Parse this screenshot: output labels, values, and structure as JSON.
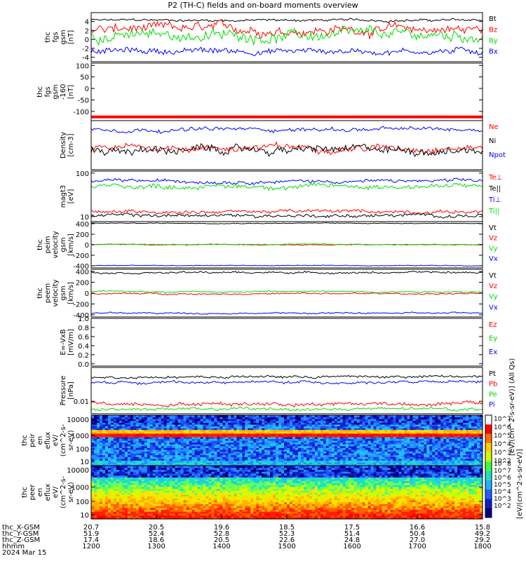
{
  "title": "P2 (TH-C) fields and on-board moments overview",
  "colors": {
    "black": "#000000",
    "red": "#ff0000",
    "green": "#00dd00",
    "blue": "#0000ff"
  },
  "chart_data": [
    {
      "type": "line",
      "panel_id": "fgs",
      "ylabel": [
        "thc",
        "fgs",
        "gsm",
        "[nT]"
      ],
      "yticks": [
        "4",
        "2",
        "0",
        "-2",
        "-4"
      ],
      "ylim": [
        -5,
        6
      ],
      "tick_values": [
        4,
        2,
        0,
        -2,
        -4
      ],
      "series": [
        {
          "name": "Bt",
          "color": "#000000",
          "level": 4.3,
          "noise": 0.4
        },
        {
          "name": "Bz",
          "color": "#ff0000",
          "level": 2.2,
          "noise": 1.6
        },
        {
          "name": "By",
          "color": "#00dd00",
          "level": 0.8,
          "noise": 1.8
        },
        {
          "name": "Bx",
          "color": "#0000ff",
          "level": -2.6,
          "noise": 1.0
        }
      ]
    },
    {
      "type": "line",
      "panel_id": "fgs_m160",
      "ylabel": [
        "thc",
        "fgs",
        "gsm",
        "-160",
        "[nT]"
      ],
      "yticks": [
        "100",
        "50",
        "0",
        "-50",
        "-100"
      ],
      "ylim": [
        -140,
        110
      ],
      "tick_values": [
        100,
        50,
        0,
        -50,
        -100
      ],
      "series": [
        {
          "name": "",
          "color": "#00dd00",
          "level": -104,
          "noise": 2
        },
        {
          "name": "",
          "color": "#ff0000",
          "level": -124,
          "noise": 0
        }
      ]
    },
    {
      "type": "line",
      "panel_id": "density",
      "ylabel": [
        "Density",
        "[cm-3]"
      ],
      "yticks": [],
      "ylim": [
        0,
        1
      ],
      "series": [
        {
          "name": "Ne",
          "color": "#ff0000",
          "level": 0.45,
          "noise": 0.1
        },
        {
          "name": "Ni",
          "color": "#000000",
          "level": 0.4,
          "noise": 0.12
        },
        {
          "name": "Npot",
          "color": "#0000ff",
          "level": 0.82,
          "noise": 0.06
        }
      ]
    },
    {
      "type": "line",
      "panel_id": "temp",
      "ylabel": [
        "magt3",
        "[eV]"
      ],
      "yticks": [
        "100",
        "10"
      ],
      "ylim": [
        0,
        1
      ],
      "tick_values": [
        0.96,
        0.1
      ],
      "series": [
        {
          "name": "Te⊥",
          "color": "#ff0000",
          "level": 0.2,
          "noise": 0.05
        },
        {
          "name": "Te||",
          "color": "#000000",
          "level": 0.12,
          "noise": 0.05
        },
        {
          "name": "Ti⊥",
          "color": "#0000ff",
          "level": 0.8,
          "noise": 0.05
        },
        {
          "name": "Ti||",
          "color": "#00dd00",
          "level": 0.7,
          "noise": 0.07
        }
      ]
    },
    {
      "type": "line",
      "panel_id": "peim_vel",
      "ylabel": [
        "thc",
        "peim",
        "velocity",
        "gsm",
        "[km/s]"
      ],
      "yticks": [
        "400",
        "200",
        "0",
        "-200",
        "-400"
      ],
      "ylim": [
        -440,
        440
      ],
      "tick_values": [
        400,
        200,
        0,
        -200,
        -400
      ],
      "series": [
        {
          "name": "Vt",
          "color": "#000000",
          "level": 410,
          "noise": 10
        },
        {
          "name": "Vz",
          "color": "#ff0000",
          "level": 0,
          "noise": 12
        },
        {
          "name": "Vy",
          "color": "#00dd00",
          "level": 5,
          "noise": 12
        },
        {
          "name": "Vx",
          "color": "#0000ff",
          "level": -395,
          "noise": 10
        }
      ]
    },
    {
      "type": "line",
      "panel_id": "peem_vel",
      "ylabel": [
        "thc",
        "peem",
        "velocity",
        "gsm",
        "[km/s]"
      ],
      "yticks": [
        "400",
        "200",
        "0",
        "-200",
        "-400"
      ],
      "ylim": [
        -440,
        440
      ],
      "tick_values": [
        400,
        200,
        0,
        -200,
        -400
      ],
      "series": [
        {
          "name": "Vt",
          "color": "#000000",
          "level": 380,
          "noise": 25
        },
        {
          "name": "Vz",
          "color": "#ff0000",
          "level": -10,
          "noise": 20
        },
        {
          "name": "Vy",
          "color": "#00dd00",
          "level": 30,
          "noise": 20
        },
        {
          "name": "Vx",
          "color": "#0000ff",
          "level": -370,
          "noise": 20
        }
      ]
    },
    {
      "type": "line",
      "panel_id": "efield",
      "ylabel": [
        "E=-VxB",
        "[mV/m]"
      ],
      "yticks": [
        "1.0",
        "0.8",
        "0.6",
        "0.4",
        "0.2",
        "0.0"
      ],
      "ylim": [
        -0.05,
        1.0
      ],
      "tick_values": [
        1.0,
        0.8,
        0.6,
        0.4,
        0.2,
        0.0
      ],
      "series": [
        {
          "name": "Ez",
          "color": "#ff0000"
        },
        {
          "name": "Ey",
          "color": "#00dd00"
        },
        {
          "name": "Ex",
          "color": "#0000ff"
        }
      ]
    },
    {
      "type": "line",
      "panel_id": "pressure",
      "ylabel": [
        "Pressure",
        "[nPa]"
      ],
      "yticks": [
        "0.01"
      ],
      "ylim": [
        0,
        1
      ],
      "tick_values": [
        0.27
      ],
      "series": [
        {
          "name": "Pt",
          "color": "#000000",
          "level": 0.8,
          "noise": 0.04
        },
        {
          "name": "Pb",
          "color": "#ff0000",
          "level": 0.22,
          "noise": 0.06
        },
        {
          "name": "Pe",
          "color": "#00dd00",
          "level": 0.1,
          "noise": 0.05
        },
        {
          "name": "Pi",
          "color": "#0000ff",
          "level": 0.68,
          "noise": 0.04
        }
      ]
    },
    {
      "type": "heatmap",
      "panel_id": "peir_spec",
      "ylabel": [
        "thc",
        "peir",
        "en",
        "eflux",
        "eV/",
        "(cm^2-s-",
        "sr-eV)"
      ],
      "yticks": [
        "10000",
        "1000",
        "100",
        "10"
      ],
      "tick_values": [
        0.92,
        0.6,
        0.33,
        0.08
      ],
      "colorbar_label": "[eV/(cm^2-s-sr-eV)] (All Qs)",
      "colorbar_ticks": [
        "10^7",
        "10^6",
        "10^5",
        "10^4",
        "10^3",
        "10^2"
      ]
    },
    {
      "type": "heatmap",
      "panel_id": "peer_spec",
      "ylabel": [
        "thc",
        "peer",
        "en",
        "eflux",
        "eV/",
        "(cm^2-s-",
        "sr-eV)"
      ],
      "yticks": [
        "10000",
        "1000",
        "100",
        "10"
      ],
      "tick_values": [
        0.92,
        0.6,
        0.33,
        0.08
      ],
      "colorbar_label": "[eV/(cm^2-s-sr-eV)]",
      "colorbar_ticks": [
        "10^8",
        "10^7",
        "10^6",
        "10^5",
        "10^4",
        "10^3",
        "10^2"
      ]
    }
  ],
  "x_axis": {
    "row_labels": [
      "thc_X-GSM",
      "thc_Y-GSM",
      "thc_Z-GSM",
      "hhmm",
      "2024 Mar 15"
    ],
    "columns": [
      {
        "x": "20.7",
        "y": "51.9",
        "z": "17.4",
        "hhmm": "1200"
      },
      {
        "x": "20.5",
        "y": "52.4",
        "z": "18.6",
        "hhmm": "1300"
      },
      {
        "x": "19.6",
        "y": "52.8",
        "z": "20.5",
        "hhmm": "1400"
      },
      {
        "x": "18.5",
        "y": "52.3",
        "z": "22.6",
        "hhmm": "1500"
      },
      {
        "x": "17.5",
        "y": "51.4",
        "z": "24.8",
        "hhmm": "1600"
      },
      {
        "x": "16.6",
        "y": "50.4",
        "z": "27.0",
        "hhmm": "1700"
      },
      {
        "x": "15.8",
        "y": "49.2",
        "z": "29.2",
        "hhmm": "1800"
      }
    ]
  }
}
